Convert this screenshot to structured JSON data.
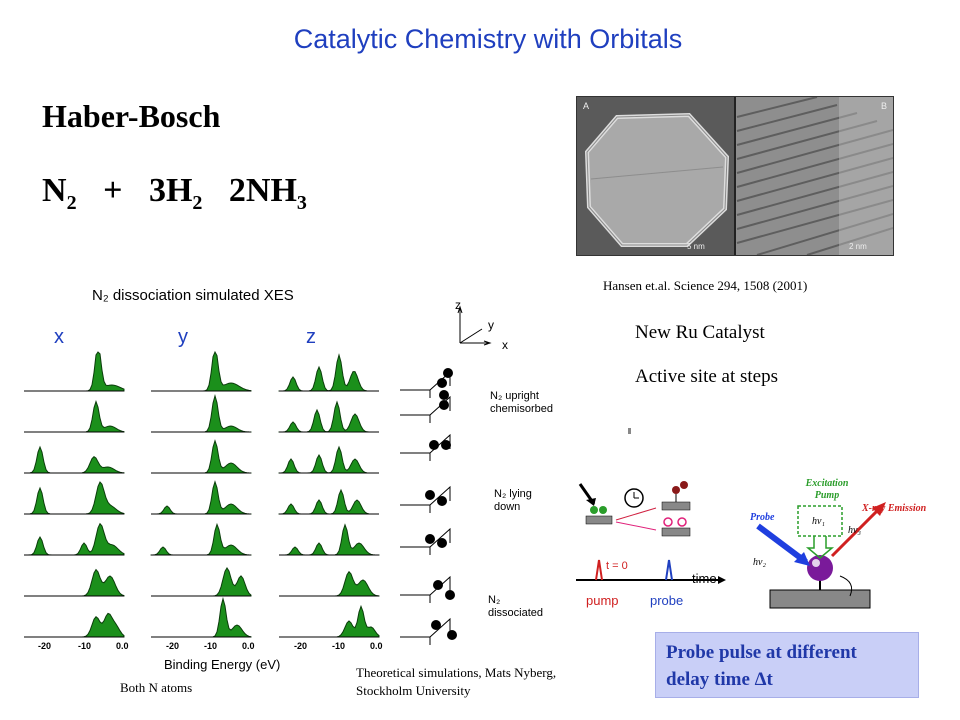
{
  "slide": {
    "title": "Catalytic Chemistry with Orbitals",
    "heading": "Haber-Bosch",
    "equation": {
      "r1": "N",
      "r1_sub": "2",
      "plus": "+",
      "r2": "3H",
      "r2_sub": "2",
      "p": "2NH",
      "p_sub": "3"
    },
    "micro_citation": "Hansen et.al. Science 294, 1508 (2001)",
    "micro_labels": {
      "a": "A",
      "b": "B",
      "scale_a": "5 nm",
      "scale_b": "2 nm"
    },
    "ru_catalyst": "New Ru Catalyst",
    "active_site": "Active site at steps",
    "xes": {
      "title": "N₂ dissociation simulated XES",
      "col_x": "x",
      "col_y": "y",
      "col_z": "z",
      "xlabel": "Binding Energy (eV)",
      "ticks": [
        "-20",
        "-10",
        "0.0"
      ],
      "caption": "Both N atoms"
    },
    "axes": {
      "z": "z",
      "y": "y",
      "x": "x"
    },
    "states": {
      "upright": "N₂ upright chemisorbed",
      "lying": "N₂ lying down",
      "dissociated": "N₂ dissociated"
    },
    "theory_caption_1": "Theoretical simulations, Mats Nyberg,",
    "theory_caption_2": "Stockholm University",
    "pump_probe": {
      "t0": "t = 0",
      "time": "time",
      "pump": "pump",
      "probe": "probe"
    },
    "emission": {
      "excitation_1": "Excitation",
      "excitation_2": "Pump",
      "xray": "X-ray Emission",
      "probe": "Probe",
      "hv1": "hν₁",
      "hv2": "hν₂",
      "hv3": "hν₃"
    },
    "probe_box_1": "Probe pulse at different",
    "probe_box_2": "delay time Δt"
  },
  "colors": {
    "title": "#1f3fbf",
    "peak_fill": "#1b8f1b",
    "probe_box": "#c9cff7"
  }
}
